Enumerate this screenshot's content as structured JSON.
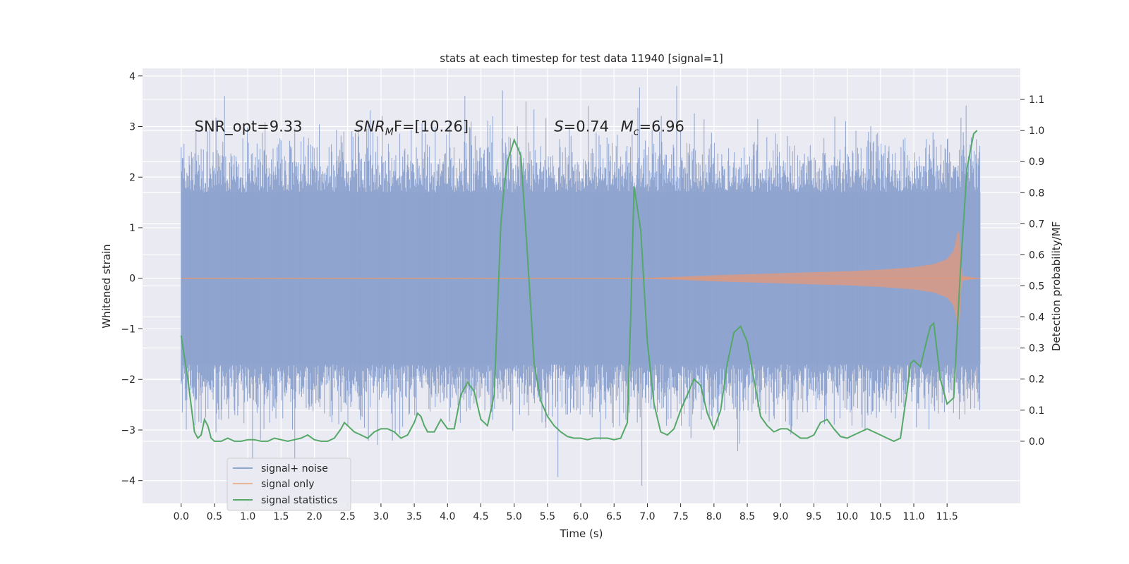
{
  "chart_data": {
    "type": "line",
    "title": "stats at each timestep for test data 11940 [signal=1]",
    "xlabel": "Time (s)",
    "ylabel": "Whitened strain",
    "ylabel_right": "Detection probability/MF",
    "xlim": [
      -0.58,
      12.6
    ],
    "ylim": [
      -4.45,
      4.15
    ],
    "ylim_right": [
      -0.2,
      1.2
    ],
    "x_ticks": [
      0.0,
      0.5,
      1.0,
      1.5,
      2.0,
      2.5,
      3.0,
      3.5,
      4.0,
      4.5,
      5.0,
      5.5,
      6.0,
      6.5,
      7.0,
      7.5,
      8.0,
      8.5,
      9.0,
      9.5,
      10.0,
      10.5,
      11.0,
      11.5
    ],
    "x_tick_labels": [
      "0.0",
      "0.5",
      "1.0",
      "1.5",
      "2.0",
      "2.5",
      "3.0",
      "3.5",
      "4.0",
      "4.5",
      "5.0",
      "5.5",
      "6.0",
      "6.5",
      "7.0",
      "7.5",
      "8.0",
      "8.5",
      "9.0",
      "9.5",
      "10.0",
      "10.5",
      "11.0",
      "11.5"
    ],
    "y_ticks": [
      -4,
      -3,
      -2,
      -1,
      0,
      1,
      2,
      3,
      4
    ],
    "y_tick_labels": [
      "−4",
      "−3",
      "−2",
      "−1",
      "0",
      "1",
      "2",
      "3",
      "4"
    ],
    "y_right_ticks": [
      0.0,
      0.1,
      0.2,
      0.3,
      0.4,
      0.5,
      0.6,
      0.7,
      0.8,
      0.9,
      1.0,
      1.1
    ],
    "y_right_tick_labels": [
      "0.0",
      "0.1",
      "0.2",
      "0.3",
      "0.4",
      "0.5",
      "0.6",
      "0.7",
      "0.8",
      "0.9",
      "1.0",
      "1.1"
    ],
    "grid": true,
    "legend_position": "lower-left",
    "annotations": [
      {
        "text": "SNR_opt=9.33",
        "x": 0.2,
        "y": 3.0
      },
      {
        "text": "SNR",
        "sub": "M",
        "rest": "F=[10.26]",
        "x": 2.6,
        "y": 3.0,
        "italic_prefix": true
      },
      {
        "text": "S",
        "rest": "=0.74",
        "x": 5.6,
        "y": 3.0,
        "italic_prefix": true
      },
      {
        "text": "M",
        "sub": "c",
        "rest": "=6.96",
        "x": 6.6,
        "y": 3.0,
        "italic_prefix": true
      }
    ],
    "series": [
      {
        "name": "signal+ noise",
        "color": "#8fa4cf",
        "style": "noise-band",
        "x_range": [
          0.0,
          12.0
        ],
        "core_amplitude": 1.7,
        "peak_max": 3.8,
        "peak_min": -4.1
      },
      {
        "name": "signal only",
        "color": "#dd8452",
        "style": "chirp",
        "x_range": [
          0.0,
          12.0
        ],
        "envelope_x": [
          0.0,
          7.0,
          7.5,
          8.0,
          9.0,
          10.0,
          10.5,
          11.0,
          11.3,
          11.5,
          11.6,
          11.68,
          11.72,
          12.0
        ],
        "envelope_y": [
          0.0,
          0.01,
          0.03,
          0.06,
          0.1,
          0.14,
          0.17,
          0.22,
          0.28,
          0.38,
          0.55,
          1.05,
          0.05,
          0.0
        ]
      },
      {
        "name": "signal statistics",
        "color": "#55a868",
        "axis": "right",
        "x": [
          0.0,
          0.1,
          0.2,
          0.25,
          0.3,
          0.35,
          0.4,
          0.45,
          0.5,
          0.6,
          0.7,
          0.8,
          0.9,
          1.0,
          1.1,
          1.2,
          1.3,
          1.4,
          1.5,
          1.6,
          1.7,
          1.8,
          1.9,
          2.0,
          2.1,
          2.2,
          2.3,
          2.4,
          2.45,
          2.5,
          2.55,
          2.6,
          2.7,
          2.8,
          2.9,
          3.0,
          3.1,
          3.2,
          3.3,
          3.4,
          3.5,
          3.55,
          3.6,
          3.65,
          3.7,
          3.8,
          3.9,
          4.0,
          4.1,
          4.2,
          4.3,
          4.4,
          4.5,
          4.6,
          4.7,
          4.8,
          4.85,
          4.9,
          5.0,
          5.1,
          5.2,
          5.3,
          5.4,
          5.5,
          5.6,
          5.7,
          5.8,
          5.9,
          6.0,
          6.1,
          6.2,
          6.3,
          6.4,
          6.5,
          6.6,
          6.7,
          6.75,
          6.8,
          6.9,
          6.95,
          7.0,
          7.1,
          7.2,
          7.3,
          7.4,
          7.5,
          7.6,
          7.7,
          7.8,
          7.9,
          8.0,
          8.1,
          8.2,
          8.3,
          8.4,
          8.5,
          8.6,
          8.7,
          8.8,
          8.9,
          9.0,
          9.1,
          9.2,
          9.3,
          9.4,
          9.5,
          9.6,
          9.7,
          9.8,
          9.9,
          10.0,
          10.1,
          10.2,
          10.3,
          10.4,
          10.5,
          10.6,
          10.7,
          10.8,
          10.9,
          10.95,
          11.0,
          11.1,
          11.2,
          11.25,
          11.3,
          11.4,
          11.5,
          11.6,
          11.7,
          11.8,
          11.9,
          11.95
        ],
        "values": [
          0.34,
          0.2,
          0.03,
          0.01,
          0.02,
          0.07,
          0.05,
          0.01,
          0.0,
          0.0,
          0.01,
          0.0,
          0.0,
          0.005,
          0.005,
          0.0,
          0.0,
          0.01,
          0.005,
          0.0,
          0.005,
          0.01,
          0.02,
          0.005,
          0.0,
          0.0,
          0.01,
          0.04,
          0.06,
          0.05,
          0.04,
          0.03,
          0.02,
          0.01,
          0.03,
          0.04,
          0.04,
          0.03,
          0.01,
          0.02,
          0.06,
          0.09,
          0.08,
          0.05,
          0.03,
          0.03,
          0.07,
          0.04,
          0.04,
          0.15,
          0.19,
          0.16,
          0.07,
          0.05,
          0.15,
          0.7,
          0.82,
          0.9,
          0.97,
          0.92,
          0.6,
          0.25,
          0.13,
          0.08,
          0.05,
          0.03,
          0.015,
          0.01,
          0.01,
          0.005,
          0.01,
          0.01,
          0.01,
          0.005,
          0.01,
          0.06,
          0.4,
          0.82,
          0.68,
          0.5,
          0.32,
          0.12,
          0.03,
          0.02,
          0.04,
          0.1,
          0.15,
          0.2,
          0.18,
          0.09,
          0.04,
          0.1,
          0.25,
          0.35,
          0.37,
          0.32,
          0.2,
          0.08,
          0.05,
          0.03,
          0.04,
          0.04,
          0.025,
          0.01,
          0.01,
          0.02,
          0.06,
          0.07,
          0.04,
          0.015,
          0.01,
          0.02,
          0.03,
          0.04,
          0.03,
          0.02,
          0.01,
          0.0,
          0.01,
          0.16,
          0.25,
          0.26,
          0.24,
          0.33,
          0.37,
          0.38,
          0.2,
          0.12,
          0.14,
          0.55,
          0.88,
          0.99,
          1.0
        ]
      }
    ]
  },
  "legend": {
    "items": [
      {
        "label": "signal+ noise",
        "color": "#8fa4cf"
      },
      {
        "label": "signal only",
        "color": "#dd8452"
      },
      {
        "label": "signal statistics",
        "color": "#55a868"
      }
    ]
  },
  "colors": {
    "plot_background": "#eaeaf2",
    "grid": "#ffffff",
    "text": "#262626"
  }
}
